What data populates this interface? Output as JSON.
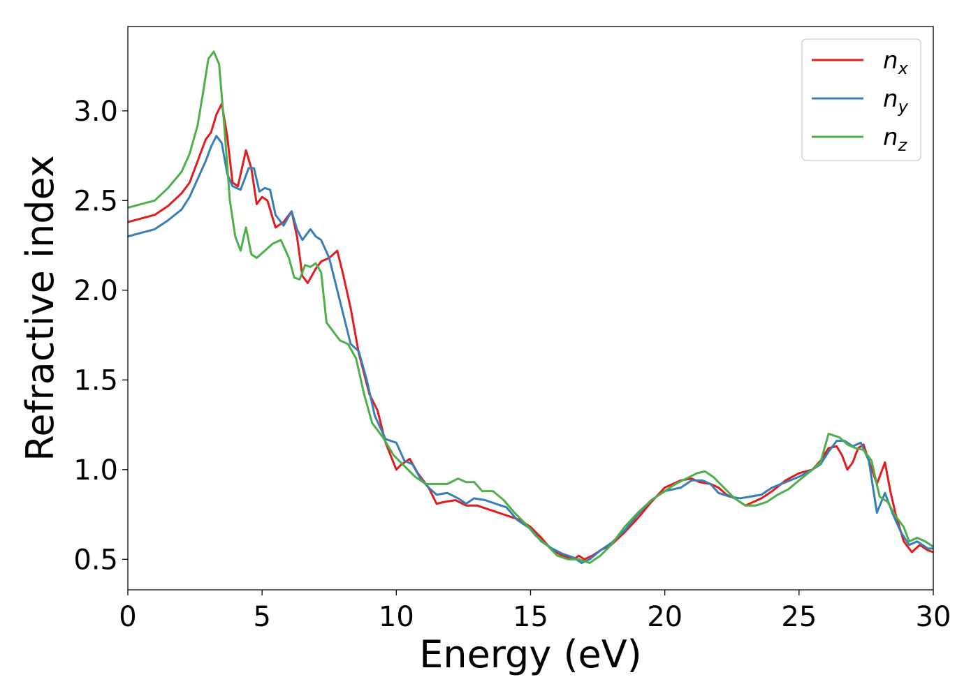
{
  "chart_data": {
    "type": "line",
    "xlabel": "Energy (eV)",
    "ylabel": "Refractive index",
    "xlim": [
      0,
      30
    ],
    "ylim": [
      0.33,
      3.47
    ],
    "xticks": [
      0,
      5,
      10,
      15,
      20,
      25,
      30
    ],
    "yticks": [
      0.5,
      1.0,
      1.5,
      2.0,
      2.5,
      3.0
    ],
    "xtick_labels": [
      "0",
      "5",
      "10",
      "15",
      "20",
      "25",
      "30"
    ],
    "ytick_labels": [
      "0.5",
      "1.0",
      "1.5",
      "2.0",
      "2.5",
      "3.0"
    ],
    "grid": false,
    "legend_position": "top-right",
    "series": [
      {
        "name": "n",
        "subscript": "x",
        "color": "#e41a1c",
        "x": [
          0,
          1,
          1.5,
          2,
          2.3,
          2.6,
          2.9,
          3.1,
          3.3,
          3.5,
          3.7,
          3.9,
          4.1,
          4.4,
          4.6,
          4.8,
          5.0,
          5.2,
          5.5,
          5.8,
          6.1,
          6.3,
          6.5,
          6.7,
          7.0,
          7.2,
          7.5,
          7.8,
          8.0,
          8.3,
          8.6,
          9.0,
          9.3,
          9.6,
          10.0,
          10.2,
          10.5,
          10.8,
          11.2,
          11.5,
          11.8,
          12.2,
          12.6,
          13.0,
          13.4,
          13.8,
          14.2,
          14.6,
          15.0,
          15.4,
          15.8,
          16.2,
          16.6,
          16.8,
          17.0,
          17.3,
          17.6,
          18.0,
          18.5,
          19.0,
          19.5,
          20.0,
          20.3,
          20.6,
          21.0,
          21.3,
          21.7,
          22.0,
          22.3,
          22.6,
          23.0,
          23.3,
          23.6,
          24.0,
          24.5,
          25.0,
          25.5,
          25.8,
          26.1,
          26.4,
          26.6,
          26.8,
          27.0,
          27.2,
          27.4,
          27.6,
          27.9,
          28.2,
          28.4,
          28.6,
          28.9,
          29.2,
          29.5,
          29.8,
          30.0
        ],
        "values": [
          2.38,
          2.42,
          2.47,
          2.54,
          2.6,
          2.72,
          2.84,
          2.88,
          2.98,
          3.04,
          2.86,
          2.6,
          2.58,
          2.78,
          2.68,
          2.48,
          2.52,
          2.5,
          2.35,
          2.38,
          2.44,
          2.3,
          2.08,
          2.04,
          2.12,
          2.16,
          2.18,
          2.22,
          2.1,
          1.9,
          1.65,
          1.42,
          1.33,
          1.15,
          1.0,
          1.03,
          1.06,
          0.98,
          0.9,
          0.81,
          0.82,
          0.83,
          0.8,
          0.8,
          0.78,
          0.76,
          0.74,
          0.72,
          0.68,
          0.62,
          0.55,
          0.52,
          0.5,
          0.52,
          0.5,
          0.52,
          0.55,
          0.58,
          0.65,
          0.73,
          0.82,
          0.9,
          0.92,
          0.94,
          0.95,
          0.93,
          0.92,
          0.9,
          0.86,
          0.84,
          0.8,
          0.82,
          0.84,
          0.88,
          0.94,
          0.98,
          1.0,
          1.05,
          1.12,
          1.13,
          1.08,
          1.0,
          1.04,
          1.12,
          1.14,
          1.05,
          0.92,
          1.04,
          0.88,
          0.75,
          0.6,
          0.54,
          0.58,
          0.55,
          0.54
        ]
      },
      {
        "name": "n",
        "subscript": "y",
        "color": "#377eb8",
        "x": [
          0,
          1,
          1.5,
          2,
          2.3,
          2.6,
          2.9,
          3.1,
          3.3,
          3.5,
          3.7,
          3.9,
          4.2,
          4.5,
          4.7,
          4.9,
          5.1,
          5.3,
          5.5,
          5.8,
          6.1,
          6.3,
          6.5,
          6.8,
          7.0,
          7.2,
          7.5,
          7.8,
          8.0,
          8.3,
          8.6,
          8.9,
          9.2,
          9.6,
          10.0,
          10.3,
          10.6,
          10.9,
          11.2,
          11.5,
          11.9,
          12.3,
          12.6,
          12.9,
          13.3,
          13.7,
          14.1,
          14.5,
          15.0,
          15.4,
          15.8,
          16.2,
          16.6,
          16.9,
          17.2,
          17.6,
          18.0,
          18.5,
          19.0,
          19.5,
          20.0,
          20.3,
          20.6,
          21.0,
          21.4,
          21.7,
          22.0,
          22.4,
          22.8,
          23.2,
          23.6,
          24.0,
          24.5,
          25.0,
          25.5,
          25.8,
          26.1,
          26.4,
          26.7,
          27.0,
          27.3,
          27.6,
          27.9,
          28.2,
          28.5,
          28.8,
          29.1,
          29.4,
          29.8,
          30.0
        ],
        "values": [
          2.3,
          2.34,
          2.39,
          2.45,
          2.52,
          2.62,
          2.72,
          2.8,
          2.86,
          2.82,
          2.65,
          2.58,
          2.56,
          2.68,
          2.68,
          2.55,
          2.57,
          2.56,
          2.42,
          2.36,
          2.44,
          2.34,
          2.28,
          2.34,
          2.3,
          2.28,
          2.18,
          2.0,
          1.88,
          1.7,
          1.66,
          1.5,
          1.3,
          1.17,
          1.15,
          1.05,
          1.03,
          0.95,
          0.9,
          0.86,
          0.87,
          0.84,
          0.81,
          0.84,
          0.83,
          0.81,
          0.79,
          0.72,
          0.67,
          0.6,
          0.56,
          0.53,
          0.51,
          0.48,
          0.5,
          0.55,
          0.59,
          0.66,
          0.75,
          0.83,
          0.88,
          0.89,
          0.9,
          0.94,
          0.94,
          0.92,
          0.87,
          0.85,
          0.84,
          0.85,
          0.86,
          0.9,
          0.93,
          0.96,
          1.0,
          1.03,
          1.1,
          1.16,
          1.16,
          1.13,
          1.15,
          1.05,
          0.76,
          0.87,
          0.75,
          0.65,
          0.58,
          0.6,
          0.56,
          0.56
        ]
      },
      {
        "name": "n",
        "subscript": "z",
        "color": "#4daf4a",
        "x": [
          0,
          1,
          1.5,
          2,
          2.3,
          2.6,
          2.8,
          3.0,
          3.2,
          3.4,
          3.6,
          3.8,
          4.0,
          4.2,
          4.4,
          4.6,
          4.8,
          5.1,
          5.4,
          5.7,
          6.0,
          6.2,
          6.4,
          6.6,
          6.8,
          7.0,
          7.2,
          7.4,
          7.6,
          7.9,
          8.2,
          8.5,
          8.8,
          9.1,
          9.5,
          9.9,
          10.3,
          10.7,
          11.1,
          11.5,
          11.9,
          12.3,
          12.6,
          12.9,
          13.2,
          13.6,
          14.0,
          14.4,
          14.8,
          15.2,
          15.6,
          16.0,
          16.4,
          16.8,
          17.2,
          17.6,
          18.0,
          18.5,
          19.0,
          19.5,
          20.0,
          20.4,
          20.8,
          21.2,
          21.5,
          21.8,
          22.2,
          22.6,
          23.0,
          23.4,
          23.8,
          24.2,
          24.6,
          25.0,
          25.5,
          25.8,
          26.1,
          26.5,
          26.8,
          27.1,
          27.4,
          27.7,
          28.0,
          28.3,
          28.6,
          28.9,
          29.1,
          29.4,
          29.7,
          30.0
        ],
        "values": [
          2.46,
          2.5,
          2.57,
          2.66,
          2.76,
          2.92,
          3.1,
          3.29,
          3.33,
          3.26,
          2.9,
          2.5,
          2.3,
          2.22,
          2.35,
          2.2,
          2.18,
          2.22,
          2.26,
          2.28,
          2.18,
          2.07,
          2.06,
          2.14,
          2.13,
          2.15,
          2.1,
          1.82,
          1.78,
          1.72,
          1.7,
          1.62,
          1.42,
          1.26,
          1.18,
          1.08,
          1.02,
          0.96,
          0.92,
          0.92,
          0.92,
          0.95,
          0.93,
          0.93,
          0.88,
          0.88,
          0.83,
          0.76,
          0.7,
          0.63,
          0.58,
          0.52,
          0.5,
          0.5,
          0.48,
          0.52,
          0.58,
          0.68,
          0.76,
          0.83,
          0.88,
          0.92,
          0.95,
          0.98,
          0.99,
          0.96,
          0.9,
          0.84,
          0.8,
          0.8,
          0.82,
          0.86,
          0.89,
          0.94,
          1.0,
          1.04,
          1.2,
          1.18,
          1.14,
          1.12,
          1.11,
          1.05,
          0.85,
          0.82,
          0.74,
          0.68,
          0.6,
          0.62,
          0.6,
          0.57
        ]
      }
    ]
  }
}
